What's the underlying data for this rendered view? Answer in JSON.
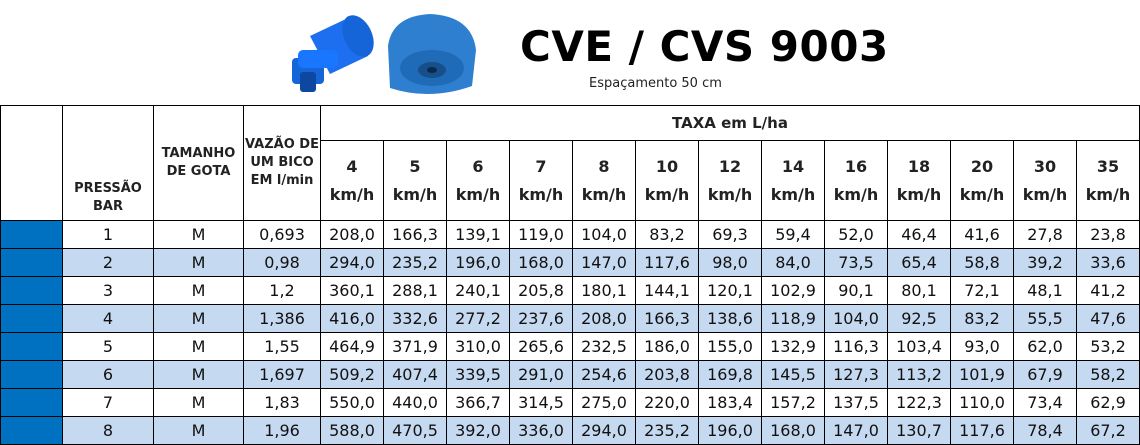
{
  "header": {
    "title": "CVE / CVS 9003",
    "subtitle": "Espaçamento 50 cm"
  },
  "table": {
    "headers": {
      "pressure": "PRESSÃO BAR",
      "droplet": "TAMANHO DE GOTA",
      "flow": "VAZÃO DE UM BICO EM l/min",
      "rate": "TAXA em L/ha",
      "speeds": [
        "4 km/h",
        "5 km/h",
        "6 km/h",
        "7 km/h",
        "8 km/h",
        "10 km/h",
        "12 km/h",
        "14 km/h",
        "16 km/h",
        "18 km/h",
        "20 km/h",
        "30 km/h",
        "35 km/h"
      ]
    },
    "rows": [
      [
        "1",
        "M",
        "0,693",
        "208,0",
        "166,3",
        "139,1",
        "119,0",
        "104,0",
        "83,2",
        "69,3",
        "59,4",
        "52,0",
        "46,4",
        "41,6",
        "27,8",
        "23,8"
      ],
      [
        "2",
        "M",
        "0,98",
        "294,0",
        "235,2",
        "196,0",
        "168,0",
        "147,0",
        "117,6",
        "98,0",
        "84,0",
        "73,5",
        "65,4",
        "58,8",
        "39,2",
        "33,6"
      ],
      [
        "3",
        "M",
        "1,2",
        "360,1",
        "288,1",
        "240,1",
        "205,8",
        "180,1",
        "144,1",
        "120,1",
        "102,9",
        "90,1",
        "80,1",
        "72,1",
        "48,1",
        "41,2"
      ],
      [
        "4",
        "M",
        "1,386",
        "416,0",
        "332,6",
        "277,2",
        "237,6",
        "208,0",
        "166,3",
        "138,6",
        "118,9",
        "104,0",
        "92,5",
        "83,2",
        "55,5",
        "47,6"
      ],
      [
        "5",
        "M",
        "1,55",
        "464,9",
        "371,9",
        "310,0",
        "265,6",
        "232,5",
        "186,0",
        "155,0",
        "132,9",
        "116,3",
        "103,4",
        "93,0",
        "62,0",
        "53,2"
      ],
      [
        "6",
        "M",
        "1,697",
        "509,2",
        "407,4",
        "339,5",
        "291,0",
        "254,6",
        "203,8",
        "169,8",
        "145,5",
        "127,3",
        "113,2",
        "101,9",
        "67,9",
        "58,2"
      ],
      [
        "7",
        "M",
        "1,83",
        "550,0",
        "440,0",
        "366,7",
        "314,5",
        "275,0",
        "220,0",
        "183,4",
        "157,2",
        "137,5",
        "122,3",
        "110,0",
        "73,4",
        "62,9"
      ],
      [
        "8",
        "M",
        "1,96",
        "588,0",
        "470,5",
        "392,0",
        "336,0",
        "294,0",
        "235,2",
        "196,0",
        "168,0",
        "147,0",
        "130,7",
        "117,6",
        "78,4",
        "67,2"
      ]
    ]
  }
}
